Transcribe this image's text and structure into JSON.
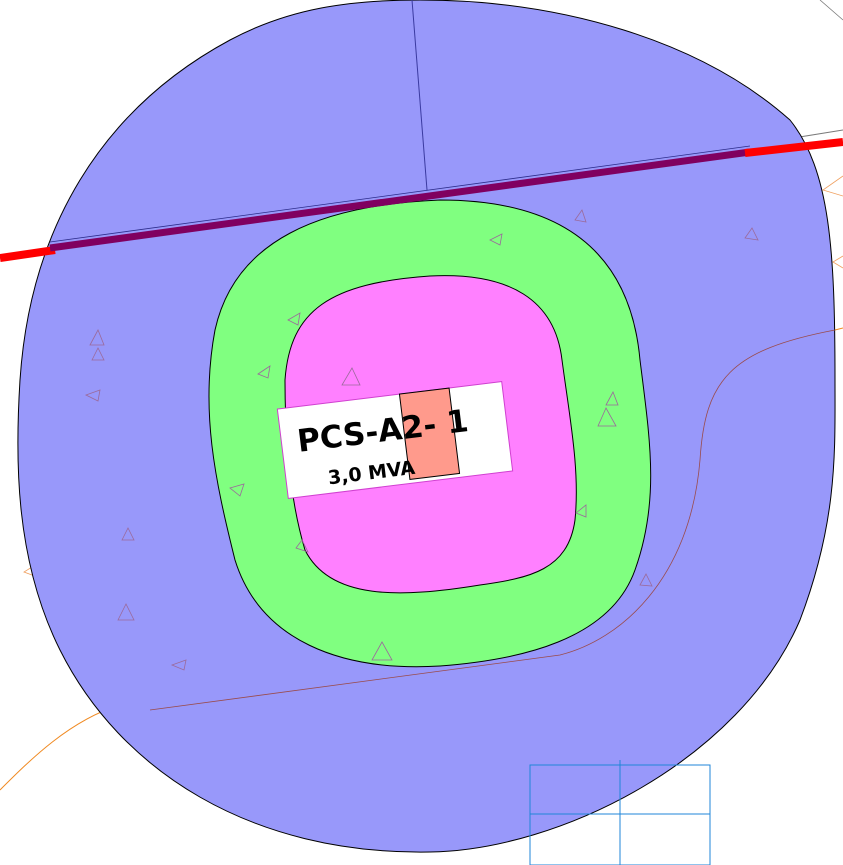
{
  "label": {
    "name": "PCS-A2- 1",
    "capacity": "3,0 MVA"
  },
  "colors": {
    "outer_zone": "#9898fa",
    "middle_zone": "#80ff80",
    "inner_zone": "#ff80ff",
    "power_line": "#ff0000",
    "power_line_overlap": "#800060",
    "marker_box": "#ff9a8c",
    "grid_box": "#1f86d8",
    "contour": "#f08a22",
    "survey_marks": "#9b6a9b"
  },
  "symbols": {
    "survey_mark": "triangle-outline"
  }
}
